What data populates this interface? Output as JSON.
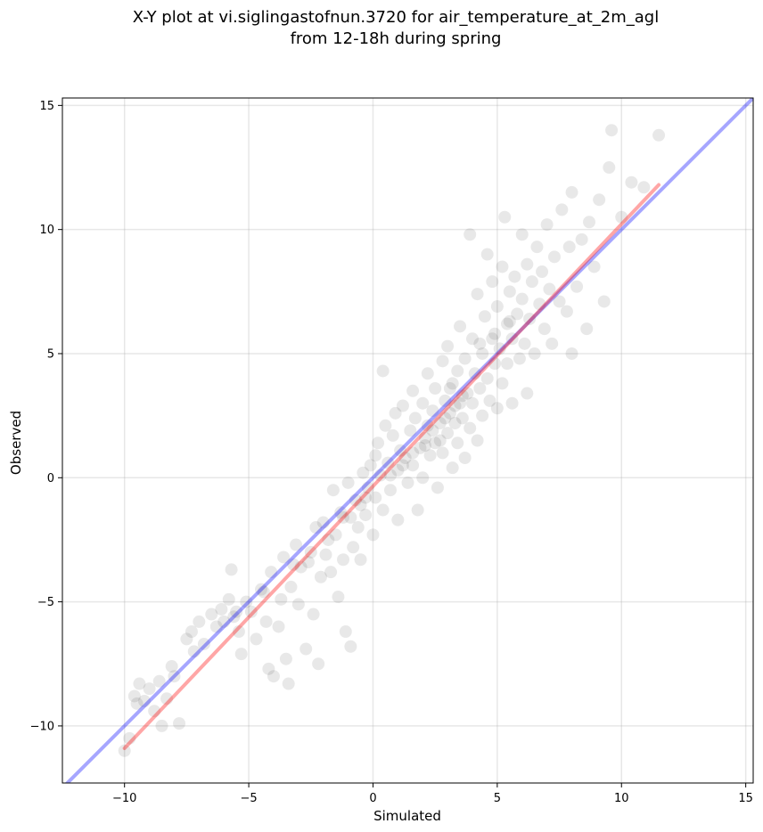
{
  "chart_data": {
    "type": "scatter",
    "title_lines": [
      "X-Y plot at vi.siglingastofnun.3720 for air_temperature_at_2m_agl",
      "from 12-18h during spring"
    ],
    "xlabel": "Simulated",
    "ylabel": "Observed",
    "xlim": [
      -12.5,
      15.3
    ],
    "ylim": [
      -12.3,
      15.3
    ],
    "xticks": [
      -10,
      -5,
      0,
      5,
      10,
      15
    ],
    "yticks": [
      -10,
      -5,
      0,
      5,
      10,
      15
    ],
    "xtick_labels": [
      "−10",
      "−5",
      "0",
      "5",
      "10",
      "15"
    ],
    "ytick_labels": [
      "−10",
      "−5",
      "0",
      "5",
      "10",
      "15"
    ],
    "grid": true,
    "point_color": "#000000",
    "point_opacity": 0.09,
    "identity_line": {
      "color": "#0000ff",
      "opacity": 0.35,
      "x": [
        -12.5,
        15.3
      ],
      "y": [
        -12.5,
        15.3
      ]
    },
    "fit_line": {
      "color": "#ff0000",
      "opacity": 0.35,
      "x": [
        -10.0,
        11.5
      ],
      "y": [
        -10.9,
        11.8
      ]
    },
    "points": [
      [
        -10,
        -11.0
      ],
      [
        -9.8,
        -10.5
      ],
      [
        -9.6,
        -8.8
      ],
      [
        -9.4,
        -8.3
      ],
      [
        -9.5,
        -9.1
      ],
      [
        -9.2,
        -9.0
      ],
      [
        -9.0,
        -8.5
      ],
      [
        -8.8,
        -9.4
      ],
      [
        -8.6,
        -8.2
      ],
      [
        -8.5,
        -10.0
      ],
      [
        -8.3,
        -8.9
      ],
      [
        -8.1,
        -7.6
      ],
      [
        -8.0,
        -8.0
      ],
      [
        -7.8,
        -9.9
      ],
      [
        -7.5,
        -6.5
      ],
      [
        -7.3,
        -6.2
      ],
      [
        -7.2,
        -7.0
      ],
      [
        -7.0,
        -5.8
      ],
      [
        -6.8,
        -6.7
      ],
      [
        -6.5,
        -5.5
      ],
      [
        -6.3,
        -6.0
      ],
      [
        -6.1,
        -5.3
      ],
      [
        -5.8,
        -4.9
      ],
      [
        -5.6,
        -5.6
      ],
      [
        -5.7,
        -3.7
      ],
      [
        -5.4,
        -6.2
      ],
      [
        -5.3,
        -7.1
      ],
      [
        -5.1,
        -5.0
      ],
      [
        -4.9,
        -5.4
      ],
      [
        -4.7,
        -6.5
      ],
      [
        -4.5,
        -4.5
      ],
      [
        -4.3,
        -5.8
      ],
      [
        -4.2,
        -7.7
      ],
      [
        -4.0,
        -8.0
      ],
      [
        -4.1,
        -3.8
      ],
      [
        -3.8,
        -6.0
      ],
      [
        -3.7,
        -4.9
      ],
      [
        -3.6,
        -3.2
      ],
      [
        -3.5,
        -7.3
      ],
      [
        -3.4,
        -8.3
      ],
      [
        -3.3,
        -4.4
      ],
      [
        -3.1,
        -2.7
      ],
      [
        -3.0,
        -5.1
      ],
      [
        -2.9,
        -3.6
      ],
      [
        -2.7,
        -6.9
      ],
      [
        -2.6,
        -3.4
      ],
      [
        -2.4,
        -5.5
      ],
      [
        -2.3,
        -2.0
      ],
      [
        -2.2,
        -7.5
      ],
      [
        -2.1,
        -4.0
      ],
      [
        -2.0,
        -1.8
      ],
      [
        -1.9,
        -3.1
      ],
      [
        -1.8,
        -2.5
      ],
      [
        -1.7,
        -3.8
      ],
      [
        -1.6,
        -0.5
      ],
      [
        -1.5,
        -2.3
      ],
      [
        -1.4,
        -4.8
      ],
      [
        -1.3,
        -1.4
      ],
      [
        -1.2,
        -3.3
      ],
      [
        -1.1,
        -6.2
      ],
      [
        -1.0,
        -0.2
      ],
      [
        -0.9,
        -1.6
      ],
      [
        -0.9,
        -6.8
      ],
      [
        -0.8,
        -2.8
      ],
      [
        -0.7,
        -0.9
      ],
      [
        -0.6,
        -2.0
      ],
      [
        -0.5,
        -1.1
      ],
      [
        -0.5,
        -3.3
      ],
      [
        -0.4,
        0.2
      ],
      [
        -0.3,
        -1.5
      ],
      [
        -0.2,
        -0.4
      ],
      [
        -0.1,
        0.5
      ],
      [
        0.0,
        -2.3
      ],
      [
        0.1,
        0.9
      ],
      [
        0.1,
        -0.8
      ],
      [
        0.2,
        1.4
      ],
      [
        0.3,
        0.1
      ],
      [
        0.4,
        4.3
      ],
      [
        0.4,
        -1.3
      ],
      [
        0.5,
        2.1
      ],
      [
        0.6,
        0.6
      ],
      [
        0.7,
        -0.5
      ],
      [
        0.8,
        1.7
      ],
      [
        0.9,
        2.6
      ],
      [
        1.0,
        0.3
      ],
      [
        1.0,
        -1.7
      ],
      [
        1.1,
        1.1
      ],
      [
        1.2,
        2.9
      ],
      [
        1.3,
        0.8
      ],
      [
        1.4,
        -0.2
      ],
      [
        1.5,
        1.9
      ],
      [
        1.6,
        3.5
      ],
      [
        1.6,
        0.5
      ],
      [
        1.7,
        2.4
      ],
      [
        1.8,
        -1.3
      ],
      [
        1.9,
        1.2
      ],
      [
        2.0,
        3.0
      ],
      [
        2.0,
        0.0
      ],
      [
        2.1,
        1.6
      ],
      [
        2.2,
        4.2
      ],
      [
        2.2,
        2.1
      ],
      [
        2.3,
        0.9
      ],
      [
        2.4,
        2.7
      ],
      [
        2.5,
        1.4
      ],
      [
        2.5,
        3.6
      ],
      [
        2.6,
        -0.4
      ],
      [
        2.7,
        2.2
      ],
      [
        2.8,
        4.7
      ],
      [
        2.8,
        1.0
      ],
      [
        2.9,
        3.1
      ],
      [
        3.0,
        1.8
      ],
      [
        3.0,
        5.3
      ],
      [
        3.1,
        2.6
      ],
      [
        3.2,
        0.4
      ],
      [
        3.2,
        3.8
      ],
      [
        3.3,
        2.2
      ],
      [
        3.4,
        4.3
      ],
      [
        3.4,
        1.4
      ],
      [
        3.5,
        3.0
      ],
      [
        3.5,
        6.1
      ],
      [
        3.6,
        2.4
      ],
      [
        3.7,
        4.8
      ],
      [
        3.7,
        0.8
      ],
      [
        3.8,
        3.4
      ],
      [
        3.9,
        9.8
      ],
      [
        3.9,
        2.0
      ],
      [
        4.0,
        5.6
      ],
      [
        4.0,
        3.0
      ],
      [
        4.1,
        4.2
      ],
      [
        4.2,
        1.5
      ],
      [
        4.2,
        7.4
      ],
      [
        4.3,
        3.6
      ],
      [
        4.4,
        5.0
      ],
      [
        4.4,
        2.5
      ],
      [
        4.5,
        6.5
      ],
      [
        4.6,
        4.0
      ],
      [
        4.6,
        9.0
      ],
      [
        4.7,
        3.1
      ],
      [
        4.8,
        5.6
      ],
      [
        4.8,
        7.9
      ],
      [
        4.9,
        4.6
      ],
      [
        5.0,
        2.8
      ],
      [
        5.0,
        6.9
      ],
      [
        5.1,
        5.2
      ],
      [
        5.2,
        8.5
      ],
      [
        5.2,
        3.8
      ],
      [
        5.3,
        10.5
      ],
      [
        5.4,
        6.2
      ],
      [
        5.4,
        4.6
      ],
      [
        5.5,
        7.5
      ],
      [
        5.6,
        5.6
      ],
      [
        5.6,
        3.0
      ],
      [
        5.7,
        8.1
      ],
      [
        5.8,
        6.6
      ],
      [
        5.9,
        4.8
      ],
      [
        6.0,
        9.8
      ],
      [
        6.0,
        7.2
      ],
      [
        6.1,
        5.4
      ],
      [
        6.2,
        3.4
      ],
      [
        6.2,
        8.6
      ],
      [
        6.3,
        6.4
      ],
      [
        6.4,
        7.9
      ],
      [
        6.5,
        5.0
      ],
      [
        6.6,
        9.3
      ],
      [
        6.7,
        7.0
      ],
      [
        6.8,
        8.3
      ],
      [
        6.9,
        6.0
      ],
      [
        7.0,
        10.2
      ],
      [
        7.1,
        7.6
      ],
      [
        7.2,
        5.4
      ],
      [
        7.3,
        8.9
      ],
      [
        7.5,
        7.1
      ],
      [
        7.6,
        10.8
      ],
      [
        7.8,
        6.7
      ],
      [
        7.9,
        9.3
      ],
      [
        8.0,
        5.0
      ],
      [
        8.0,
        11.5
      ],
      [
        8.2,
        7.7
      ],
      [
        8.4,
        9.6
      ],
      [
        8.6,
        6.0
      ],
      [
        8.7,
        10.3
      ],
      [
        8.9,
        8.5
      ],
      [
        9.1,
        11.2
      ],
      [
        9.3,
        7.1
      ],
      [
        9.5,
        12.5
      ],
      [
        9.6,
        14.0
      ],
      [
        10.0,
        10.5
      ],
      [
        10.4,
        11.9
      ],
      [
        10.9,
        11.7
      ],
      [
        11.5,
        13.8
      ],
      [
        2.4,
        1.9
      ],
      [
        2.9,
        2.4
      ],
      [
        3.3,
        2.9
      ],
      [
        3.6,
        3.3
      ],
      [
        2.1,
        1.3
      ],
      [
        1.6,
        1.0
      ],
      [
        1.2,
        0.5
      ],
      [
        0.7,
        0.1
      ],
      [
        3.1,
        3.6
      ],
      [
        2.7,
        1.5
      ],
      [
        -0.3,
        -0.8
      ],
      [
        -1.2,
        -1.6
      ],
      [
        -2.5,
        -3.0
      ],
      [
        -3.2,
        -3.5
      ],
      [
        -4.4,
        -4.6
      ],
      [
        -5.5,
        -5.4
      ],
      [
        -6.0,
        -5.8
      ],
      [
        4.3,
        5.4
      ],
      [
        4.9,
        5.8
      ],
      [
        5.5,
        6.3
      ]
    ]
  }
}
